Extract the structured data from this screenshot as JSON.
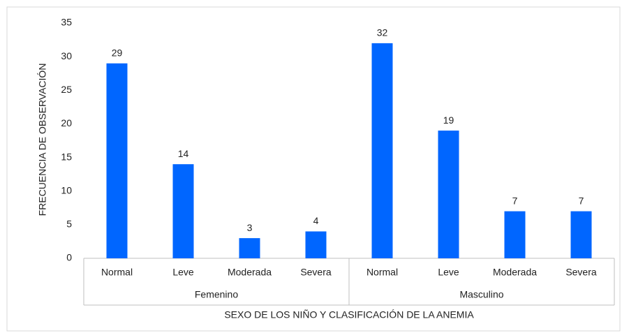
{
  "chart_data": {
    "type": "bar",
    "y_label": "FRECUENCIA DE OBSERVACIÓN",
    "x_label": "SEXO DE LOS NIÑO Y CLASIFICACIÓN DE LA ANEMIA",
    "groups": [
      {
        "name": "Femenino",
        "categories": [
          "Normal",
          "Leve",
          "Moderada",
          "Severa"
        ],
        "values": [
          29,
          14,
          3,
          4
        ]
      },
      {
        "name": "Masculino",
        "categories": [
          "Normal",
          "Leve",
          "Moderada",
          "Severa"
        ],
        "values": [
          32,
          19,
          7,
          7
        ]
      }
    ],
    "color": "#0066ff",
    "ylim": [
      0,
      35
    ],
    "yticks": [
      0,
      5,
      10,
      15,
      20,
      25,
      30,
      35
    ],
    "grid": false
  }
}
